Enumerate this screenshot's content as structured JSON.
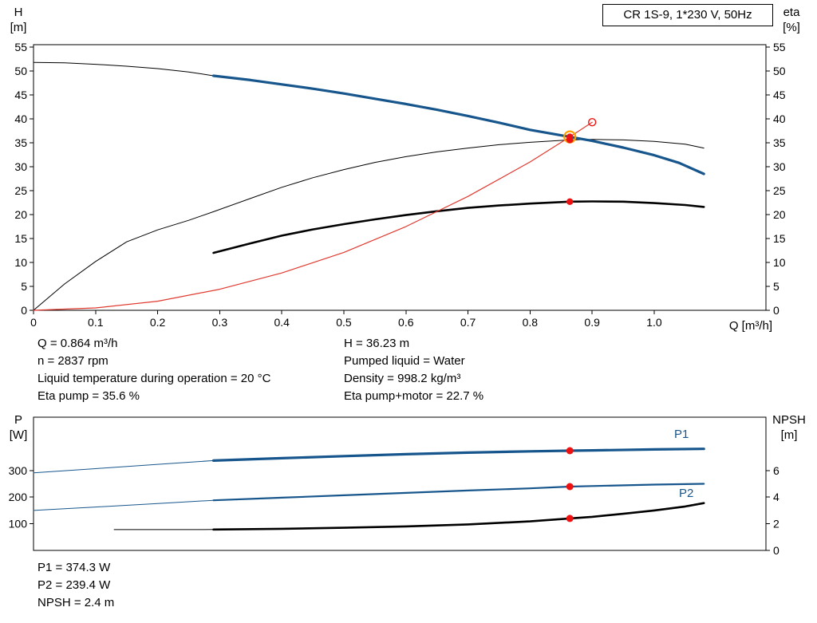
{
  "header": {
    "pump_model_box": "CR 1S-9, 1*230 V, 50Hz"
  },
  "axis_corner_labels": {
    "h_symbol": "H",
    "h_unit": "[m]",
    "eta_symbol": "eta",
    "eta_unit": "[%]",
    "q_label": "Q [m³/h]",
    "p_symbol": "P",
    "p_unit": "[W]",
    "npsh_symbol": "NPSH",
    "npsh_unit": "[m]"
  },
  "info_top": {
    "col1": [
      "Q = 0.864 m³/h",
      "n = 2837 rpm",
      "Liquid temperature during operation = 20 °C",
      "Eta pump = 35.6 %"
    ],
    "col2": [
      "H = 36.23 m",
      "Pumped liquid = Water",
      "Density = 998.2 kg/m³",
      "Eta pump+motor = 22.7 %"
    ]
  },
  "info_bottom": [
    "P1 = 374.3 W",
    "P2 = 239.4 W",
    "NPSH = 2.4 m"
  ],
  "colors": {
    "curve_blue": "#17568c",
    "curve_black": "#000000",
    "system_red": "#e03a2f",
    "duty_red": "#ee1111",
    "duty_ring_orange": "#ffa000"
  },
  "chart_data": [
    {
      "name": "qh-eta-chart",
      "type": "line",
      "title": "CR 1S-9, 1*230 V, 50Hz",
      "x_axis": {
        "label": "Q [m³/h]",
        "min": 0,
        "max": 1.18,
        "ticks": [
          0,
          0.1,
          0.2,
          0.3,
          0.4,
          0.5,
          0.6,
          0.7,
          0.8,
          0.9,
          1.0
        ],
        "tick_labels": [
          "0",
          "0.1",
          "0.2",
          "0.3",
          "0.4",
          "0.5",
          "0.6",
          "0.7",
          "0.8",
          "0.9",
          "1.0"
        ]
      },
      "y_left": {
        "label": "H [m]",
        "min": 0,
        "max": 55.5,
        "ticks": [
          0,
          5,
          10,
          15,
          20,
          25,
          30,
          35,
          40,
          45,
          50,
          55
        ],
        "tick_labels": [
          "0",
          "5",
          "10",
          "15",
          "20",
          "25",
          "30",
          "35",
          "40",
          "45",
          "50",
          "55"
        ]
      },
      "y_right": {
        "label": "eta [%]",
        "min": 0,
        "max": 55.5,
        "ticks": [
          0,
          5,
          10,
          15,
          20,
          25,
          30,
          35,
          40,
          45,
          50,
          55
        ],
        "tick_labels": [
          "0",
          "5",
          "10",
          "15",
          "20",
          "25",
          "30",
          "35",
          "40",
          "45",
          "50",
          "55"
        ]
      },
      "series": [
        {
          "name": "h-curve-extension-thin",
          "axis": "left",
          "color": "#000000",
          "width": 1,
          "points": [
            [
              0,
              51.8
            ],
            [
              0.05,
              51.7
            ],
            [
              0.1,
              51.4
            ],
            [
              0.15,
              51.0
            ],
            [
              0.2,
              50.5
            ],
            [
              0.25,
              49.8
            ],
            [
              0.29,
              49.0
            ]
          ]
        },
        {
          "name": "eta-pump-curve-thin",
          "axis": "right",
          "color": "#000000",
          "width": 1,
          "points": [
            [
              0,
              0
            ],
            [
              0.05,
              5.5
            ],
            [
              0.1,
              10.2
            ],
            [
              0.15,
              14.3
            ],
            [
              0.2,
              16.8
            ],
            [
              0.25,
              18.8
            ],
            [
              0.29,
              20.6
            ],
            [
              0.35,
              23.4
            ],
            [
              0.4,
              25.7
            ],
            [
              0.45,
              27.7
            ],
            [
              0.5,
              29.4
            ],
            [
              0.55,
              30.9
            ],
            [
              0.6,
              32.1
            ],
            [
              0.65,
              33.1
            ],
            [
              0.7,
              33.9
            ],
            [
              0.75,
              34.6
            ],
            [
              0.8,
              35.1
            ],
            [
              0.864,
              35.6
            ],
            [
              0.9,
              35.7
            ],
            [
              0.95,
              35.6
            ],
            [
              1.0,
              35.3
            ],
            [
              1.05,
              34.7
            ],
            [
              1.08,
              33.9
            ]
          ]
        },
        {
          "name": "eta-pump-motor-curve-thick",
          "axis": "right",
          "color": "#000000",
          "width": 2.6,
          "points": [
            [
              0.29,
              12.0
            ],
            [
              0.35,
              14.0
            ],
            [
              0.4,
              15.6
            ],
            [
              0.45,
              16.9
            ],
            [
              0.5,
              18.0
            ],
            [
              0.55,
              19.0
            ],
            [
              0.6,
              19.9
            ],
            [
              0.65,
              20.7
            ],
            [
              0.7,
              21.4
            ],
            [
              0.75,
              21.9
            ],
            [
              0.8,
              22.3
            ],
            [
              0.864,
              22.7
            ],
            [
              0.9,
              22.75
            ],
            [
              0.95,
              22.7
            ],
            [
              1.0,
              22.4
            ],
            [
              1.05,
              22.0
            ],
            [
              1.08,
              21.6
            ]
          ]
        },
        {
          "name": "system-resistance-curve",
          "axis": "left",
          "color": "#e03a2f",
          "width": 1.2,
          "points": [
            [
              0,
              0
            ],
            [
              0.1,
              0.5
            ],
            [
              0.2,
              1.9
            ],
            [
              0.3,
              4.4
            ],
            [
              0.4,
              7.8
            ],
            [
              0.5,
              12.1
            ],
            [
              0.6,
              17.5
            ],
            [
              0.7,
              23.8
            ],
            [
              0.8,
              31.0
            ],
            [
              0.864,
              36.23
            ],
            [
              0.9,
              39.3
            ]
          ]
        },
        {
          "name": "qh-curve-blue",
          "axis": "left",
          "color": "#17568c",
          "width": 3.2,
          "points": [
            [
              0.29,
              49.0
            ],
            [
              0.35,
              48.1
            ],
            [
              0.4,
              47.2
            ],
            [
              0.45,
              46.3
            ],
            [
              0.5,
              45.3
            ],
            [
              0.55,
              44.2
            ],
            [
              0.6,
              43.1
            ],
            [
              0.65,
              41.9
            ],
            [
              0.7,
              40.6
            ],
            [
              0.75,
              39.2
            ],
            [
              0.8,
              37.7
            ],
            [
              0.864,
              36.23
            ],
            [
              0.9,
              35.4
            ],
            [
              0.95,
              34.0
            ],
            [
              1.0,
              32.4
            ],
            [
              1.04,
              30.8
            ],
            [
              1.08,
              28.5
            ]
          ]
        }
      ],
      "markers": [
        {
          "name": "duty-point-ring",
          "axis": "left",
          "x": 0.864,
          "y": 36.23,
          "r": 7,
          "fill": "none",
          "stroke": "#ffa000",
          "stroke_width": 2.2
        },
        {
          "name": "duty-point-eta-pump-dot",
          "axis": "right",
          "x": 0.864,
          "y": 35.6,
          "r": 4.2,
          "fill": "#ee1111"
        },
        {
          "name": "duty-point-h-dot",
          "axis": "left",
          "x": 0.864,
          "y": 36.23,
          "r": 4.2,
          "fill": "#ee1111"
        },
        {
          "name": "duty-point-eta-total-dot",
          "axis": "right",
          "x": 0.864,
          "y": 22.7,
          "r": 4.2,
          "fill": "#ee1111"
        },
        {
          "name": "requested-duty-ring",
          "axis": "left",
          "x": 0.9,
          "y": 39.3,
          "r": 4.5,
          "fill": "none",
          "stroke": "#ee1111",
          "stroke_width": 1.4
        }
      ]
    },
    {
      "name": "power-npsh-chart",
      "type": "line",
      "x_axis": {
        "label": "",
        "min": 0,
        "max": 1.18,
        "ticks": [],
        "tick_labels": []
      },
      "y_left": {
        "label": "P [W]",
        "min": 0,
        "max": 500,
        "ticks": [
          100,
          200,
          300
        ],
        "tick_labels": [
          "100",
          "200",
          "300"
        ]
      },
      "y_right": {
        "label": "NPSH [m]",
        "min": 0,
        "max": 10,
        "ticks": [
          0,
          2,
          4,
          6
        ],
        "tick_labels": [
          "0",
          "2",
          "4",
          "6"
        ]
      },
      "series": [
        {
          "name": "p1-curve-extension-thin",
          "axis": "left",
          "color": "#17568c",
          "width": 1,
          "points": [
            [
              0,
              291
            ],
            [
              0.1,
              307
            ],
            [
              0.2,
              323
            ],
            [
              0.29,
              337
            ]
          ]
        },
        {
          "name": "p1-input-power-curve",
          "axis": "left",
          "color": "#17568c",
          "width": 3.2,
          "points": [
            [
              0.29,
              337
            ],
            [
              0.4,
              346
            ],
            [
              0.5,
              354
            ],
            [
              0.6,
              361
            ],
            [
              0.7,
              367
            ],
            [
              0.8,
              372
            ],
            [
              0.864,
              374.3
            ],
            [
              0.9,
              375.5
            ],
            [
              1.0,
              379
            ],
            [
              1.08,
              381
            ]
          ]
        },
        {
          "name": "p2-curve-extension-thin",
          "axis": "left",
          "color": "#17568c",
          "width": 1,
          "points": [
            [
              0,
              150
            ],
            [
              0.1,
              163
            ],
            [
              0.2,
              176
            ],
            [
              0.29,
              188
            ]
          ]
        },
        {
          "name": "p2-shaft-power-curve",
          "axis": "left",
          "color": "#17568c",
          "width": 2.2,
          "points": [
            [
              0.29,
              188
            ],
            [
              0.4,
              198
            ],
            [
              0.5,
              207
            ],
            [
              0.6,
              216
            ],
            [
              0.7,
              225
            ],
            [
              0.8,
              233
            ],
            [
              0.864,
              239.4
            ],
            [
              0.9,
              241.5
            ],
            [
              1.0,
              247
            ],
            [
              1.08,
              250
            ]
          ]
        },
        {
          "name": "npsh-curve-extension-thin",
          "axis": "right",
          "color": "#000000",
          "width": 1,
          "points": [
            [
              0.13,
              1.56
            ],
            [
              0.2,
              1.56
            ],
            [
              0.29,
              1.57
            ]
          ]
        },
        {
          "name": "npsh-curve",
          "axis": "right",
          "color": "#000000",
          "width": 2.6,
          "points": [
            [
              0.29,
              1.57
            ],
            [
              0.4,
              1.62
            ],
            [
              0.5,
              1.7
            ],
            [
              0.6,
              1.8
            ],
            [
              0.7,
              1.95
            ],
            [
              0.8,
              2.18
            ],
            [
              0.864,
              2.4
            ],
            [
              0.9,
              2.52
            ],
            [
              0.95,
              2.75
            ],
            [
              1.0,
              3.0
            ],
            [
              1.05,
              3.3
            ],
            [
              1.08,
              3.55
            ]
          ]
        }
      ],
      "markers": [
        {
          "name": "duty-point-p1-dot",
          "axis": "left",
          "x": 0.864,
          "y": 374.3,
          "r": 4.5,
          "fill": "#ee1111"
        },
        {
          "name": "duty-point-p2-dot",
          "axis": "left",
          "x": 0.864,
          "y": 239.4,
          "r": 4.5,
          "fill": "#ee1111"
        },
        {
          "name": "duty-point-npsh-dot",
          "axis": "right",
          "x": 0.864,
          "y": 2.4,
          "r": 4.5,
          "fill": "#ee1111"
        }
      ],
      "annotations": [
        {
          "name": "p1-label",
          "text": "P1"
        },
        {
          "name": "p2-label",
          "text": "P2"
        }
      ]
    }
  ]
}
